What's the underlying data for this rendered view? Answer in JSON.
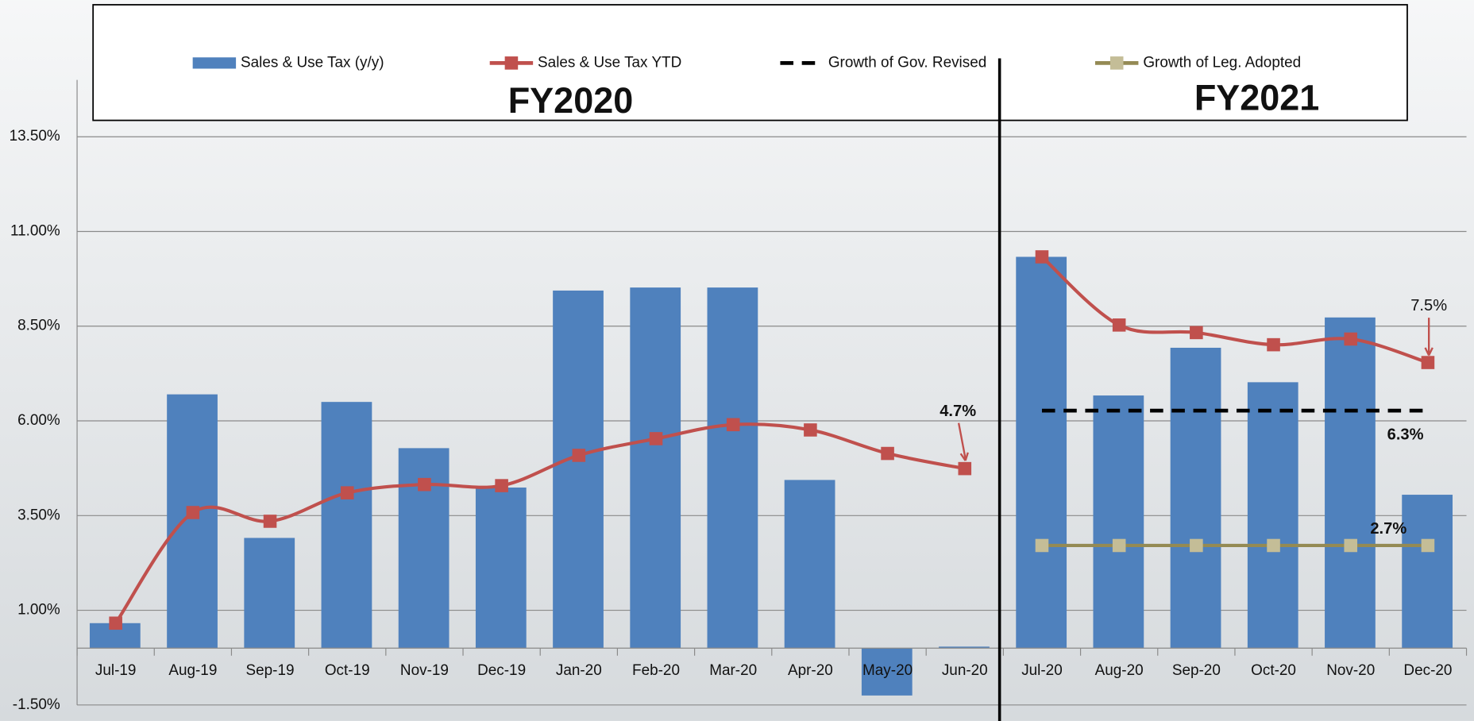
{
  "chart_data": {
    "type": "bar_line",
    "categories": [
      "Jul-19",
      "Aug-19",
      "Sep-19",
      "Oct-19",
      "Nov-19",
      "Dec-19",
      "Jan-20",
      "Feb-20",
      "Mar-20",
      "Apr-20",
      "May-20",
      "Jun-20",
      "Jul-20",
      "Aug-20",
      "Sep-20",
      "Oct-20",
      "Nov-20",
      "Dec-20"
    ],
    "series": [
      {
        "name": "Sales & Use Tax (y/y)",
        "kind": "bar",
        "color": "#4f81bd",
        "values": [
          0.66,
          6.7,
          2.91,
          6.5,
          5.28,
          4.24,
          9.44,
          9.52,
          9.52,
          4.44,
          -1.25,
          0.04,
          10.33,
          6.67,
          7.93,
          7.02,
          8.73,
          4.05
        ]
      },
      {
        "name": "Sales & Use Tax YTD",
        "kind": "line",
        "color": "#c0504d",
        "marker_color": "#c0504d",
        "smooth": true,
        "values": [
          0.66,
          3.58,
          3.35,
          4.1,
          4.32,
          4.29,
          5.09,
          5.53,
          5.9,
          5.76,
          5.14,
          4.74,
          10.33,
          8.53,
          8.33,
          8.01,
          8.16,
          7.54
        ]
      },
      {
        "name": "Growth of Gov. Revised",
        "kind": "line",
        "color": "#000000",
        "dashed": true,
        "values": [
          null,
          null,
          null,
          null,
          null,
          null,
          null,
          null,
          null,
          null,
          null,
          null,
          6.27,
          6.27,
          6.27,
          6.27,
          6.27,
          6.27
        ]
      },
      {
        "name": "Growth of Leg. Adopted",
        "kind": "line",
        "color": "#948a54",
        "marker_color": "#c4bd97",
        "values": [
          null,
          null,
          null,
          null,
          null,
          null,
          null,
          null,
          null,
          null,
          null,
          null,
          2.71,
          2.71,
          2.71,
          2.71,
          2.71,
          2.71
        ]
      }
    ],
    "sections": [
      {
        "label": "FY2020",
        "first": "Jul-19"
      },
      {
        "label": "FY2021",
        "first": "Jul-20"
      }
    ],
    "annotations": [
      {
        "text": "4.7%",
        "color": "#c0504d",
        "arrow": true
      },
      {
        "text": "7.5%",
        "color": "#c0504d",
        "arrow": true
      },
      {
        "text": "6.3%",
        "color": "#000000"
      },
      {
        "text": "2.7%",
        "color": "#000000"
      }
    ],
    "ylim": [
      -1.5,
      15
    ],
    "yticks": [
      {
        "value": -1.5,
        "label": "-1.50%"
      },
      {
        "value": 1,
        "label": "1.00%"
      },
      {
        "value": 3.5,
        "label": "3.50%"
      },
      {
        "value": 6,
        "label": "6.00%"
      },
      {
        "value": 8.5,
        "label": "8.50%"
      },
      {
        "value": 11,
        "label": "11.00%"
      },
      {
        "value": 13.5,
        "label": "13.50%"
      }
    ],
    "grid": true,
    "legend": "top"
  }
}
